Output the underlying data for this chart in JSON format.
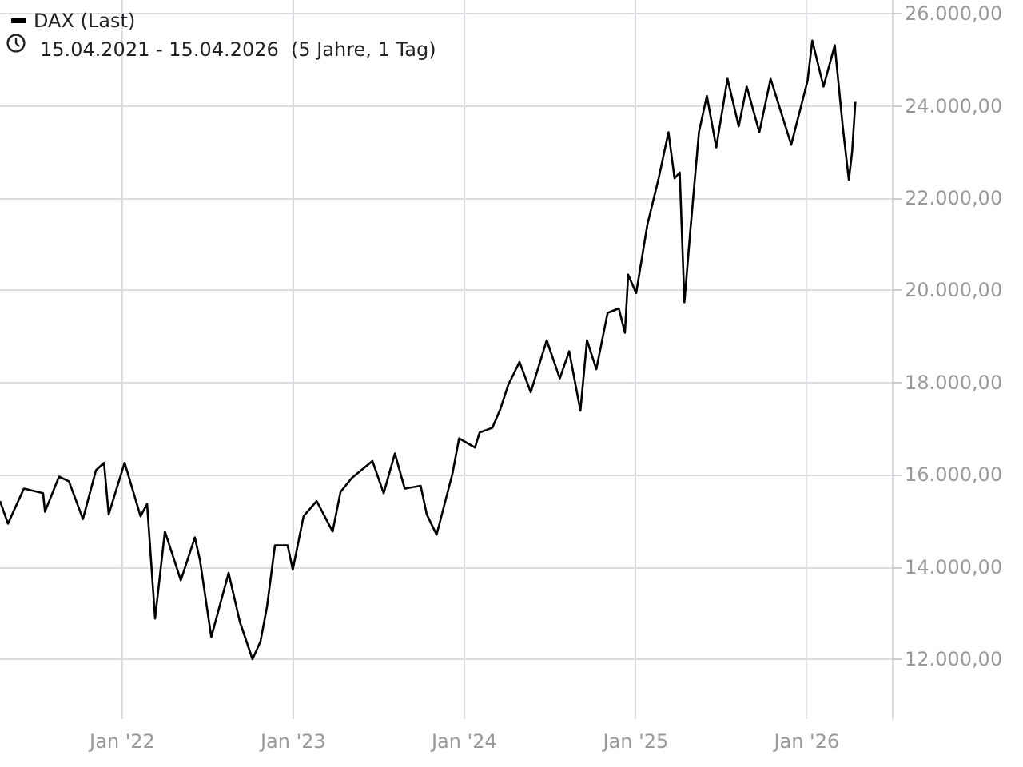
{
  "chart_data": {
    "type": "line",
    "subtitle": "15.04.2021 - 15.04.2026  (5 Jahre, 1 Tag)",
    "x": [
      "2021-04-15",
      "2021-05-02",
      "2021-06-05",
      "2021-07-16",
      "2021-07-20",
      "2021-08-19",
      "2021-09-09",
      "2021-10-09",
      "2021-11-06",
      "2021-11-23",
      "2021-12-03",
      "2022-01-06",
      "2022-02-09",
      "2022-02-23",
      "2022-03-12",
      "2022-04-02",
      "2022-05-06",
      "2022-06-05",
      "2022-06-16",
      "2022-07-10",
      "2022-08-16",
      "2022-09-09",
      "2022-10-06",
      "2022-10-23",
      "2022-11-06",
      "2022-11-23",
      "2022-12-20",
      "2022-12-31",
      "2023-01-23",
      "2023-02-20",
      "2023-03-26",
      "2023-04-12",
      "2023-05-06",
      "2023-06-19",
      "2023-07-13",
      "2023-08-06",
      "2023-08-27",
      "2023-09-30",
      "2023-10-13",
      "2023-11-03",
      "2023-12-07",
      "2023-12-21",
      "2024-01-24",
      "2024-02-03",
      "2024-03-01",
      "2024-03-18",
      "2024-04-04",
      "2024-04-28",
      "2024-05-22",
      "2024-06-25",
      "2024-07-23",
      "2024-08-12",
      "2024-09-05",
      "2024-09-19",
      "2024-10-09",
      "2024-11-02",
      "2024-11-26",
      "2024-12-09",
      "2024-12-16",
      "2025-01-02",
      "2025-01-26",
      "2025-02-19",
      "2025-03-12",
      "2025-03-25",
      "2025-04-05",
      "2025-04-15",
      "2025-04-28",
      "2025-05-16",
      "2025-06-02",
      "2025-06-22",
      "2025-07-16",
      "2025-08-09",
      "2025-08-26",
      "2025-09-22",
      "2025-10-16",
      "2025-11-29",
      "2026-01-03",
      "2026-01-13",
      "2026-02-06",
      "2026-03-02",
      "2026-03-19",
      "2026-04-01",
      "2026-04-08",
      "2026-04-15"
    ],
    "series": [
      {
        "name": "DAX (Last)",
        "color": "#000000",
        "values": [
          15430,
          14940,
          15700,
          15600,
          15200,
          15960,
          15860,
          15040,
          16100,
          16260,
          15140,
          16260,
          15100,
          15370,
          12880,
          14770,
          13710,
          14640,
          14140,
          12480,
          13870,
          12810,
          12000,
          12380,
          13140,
          14470,
          14470,
          13940,
          15100,
          15430,
          14770,
          15630,
          15930,
          16300,
          15600,
          16460,
          15700,
          15760,
          15140,
          14700,
          16030,
          16790,
          16590,
          16920,
          17020,
          17420,
          17950,
          18450,
          17790,
          18920,
          18090,
          18680,
          17390,
          18920,
          18290,
          19510,
          19610,
          19080,
          20340,
          19940,
          21430,
          22430,
          23430,
          22430,
          22560,
          19740,
          21340,
          23430,
          24220,
          23100,
          24590,
          23560,
          24420,
          23430,
          24590,
          23160,
          24550,
          25420,
          24420,
          25320,
          23560,
          22400,
          23000,
          24090
        ]
      }
    ],
    "xlim": [
      "2021-04-15",
      "2026-07-02"
    ],
    "xticks": [
      {
        "value": "2022-01-01",
        "label": "Jan '22"
      },
      {
        "value": "2023-01-01",
        "label": "Jan '23"
      },
      {
        "value": "2024-01-01",
        "label": "Jan '24"
      },
      {
        "value": "2025-01-01",
        "label": "Jan '25"
      },
      {
        "value": "2026-01-01",
        "label": "Jan '26"
      }
    ],
    "ylim": [
      10700,
      26300
    ],
    "yticks": [
      {
        "value": 12000,
        "label": "12.000,00"
      },
      {
        "value": 14000,
        "label": "14.000,00"
      },
      {
        "value": 16000,
        "label": "16.000,00"
      },
      {
        "value": 18000,
        "label": "18.000,00"
      },
      {
        "value": 20000,
        "label": "20.000,00"
      },
      {
        "value": 22000,
        "label": "22.000,00"
      },
      {
        "value": 24000,
        "label": "24.000,00"
      },
      {
        "value": 26000,
        "label": "26.000,00"
      }
    ],
    "grid": true,
    "legend": "top left",
    "marker": "none",
    "line_style": "solid"
  }
}
